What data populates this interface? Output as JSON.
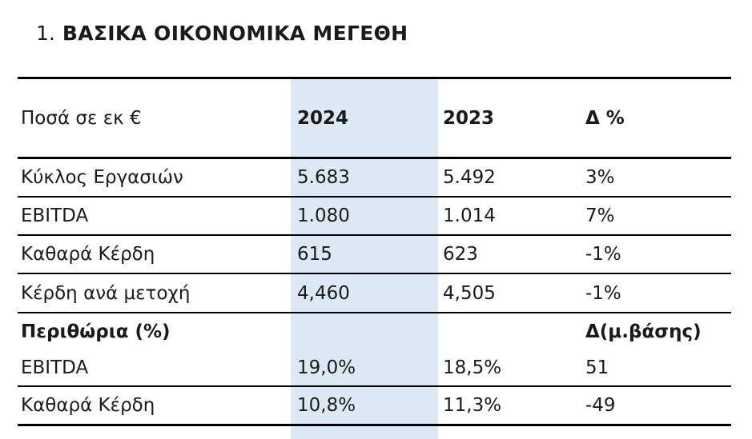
{
  "title": {
    "number": "1.",
    "text": "ΒΑΣΙΚΑ ΟΙΚΟΝΟΜΙΚΑ ΜΕΓΕΘΗ"
  },
  "table": {
    "header": {
      "label": "Ποσά σε εκ €",
      "col_2024": "2024",
      "col_2023": "2023",
      "col_delta": "Δ %"
    },
    "rows": [
      {
        "label": "Κύκλος Εργασιών",
        "v2024": "5.683",
        "v2023": "5.492",
        "delta": "3%"
      },
      {
        "label": "EBITDA",
        "v2024": "1.080",
        "v2023": "1.014",
        "delta": "7%"
      },
      {
        "label": "Καθαρά Κέρδη",
        "v2024": "615",
        "v2023": "623",
        "delta": "-1%"
      },
      {
        "label": "Κέρδη ανά μετοχή",
        "v2024": "4,460",
        "v2023": "4,505",
        "delta": "-1%"
      }
    ],
    "section": {
      "label": "Περιθώρια (%)",
      "delta_header": "Δ(μ.βάσης)"
    },
    "margin_rows": [
      {
        "label": "EBITDA",
        "v2024": "19,0%",
        "v2023": "18,5%",
        "delta": "51"
      },
      {
        "label": "Καθαρά Κέρδη",
        "v2024": "10,8%",
        "v2023": "11,3%",
        "delta": "-49"
      }
    ]
  },
  "colors": {
    "highlight_2024_column": "#dce8f4",
    "rule_lines": "#000000",
    "text": "#1a1a1a"
  }
}
